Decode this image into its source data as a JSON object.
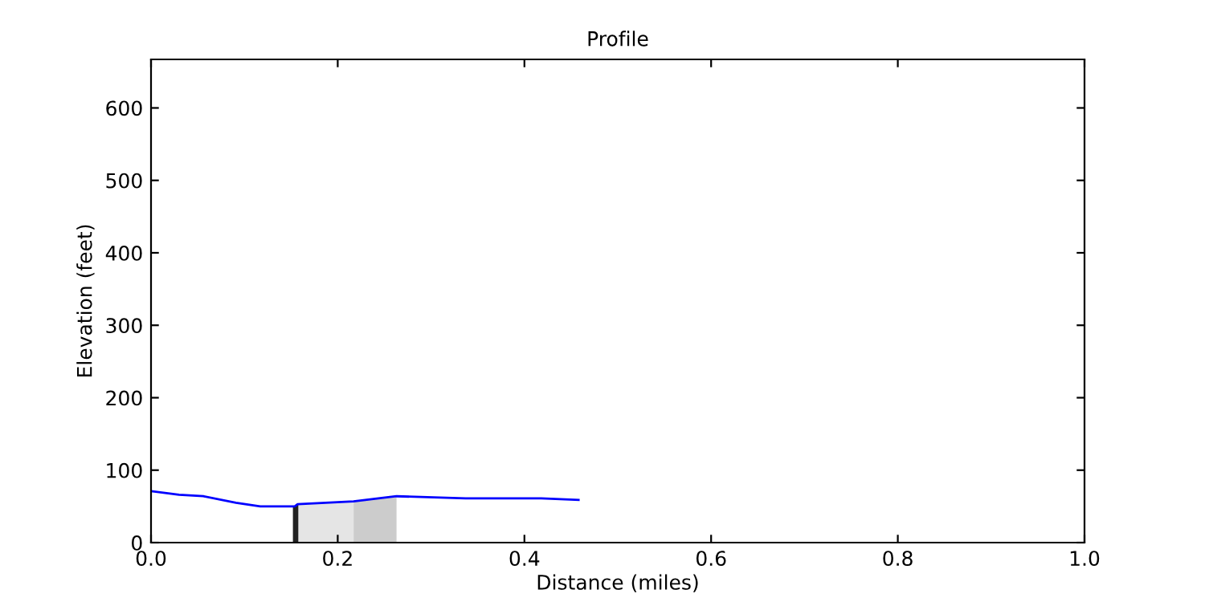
{
  "chart_data": {
    "type": "line",
    "title": "Profile",
    "xlabel": "Distance (miles)",
    "ylabel": "Elevation (feet)",
    "xlim": [
      0,
      1
    ],
    "xticks": [
      {
        "value": 0,
        "label": "0.0"
      },
      {
        "value": 0.2,
        "label": "0.2"
      },
      {
        "value": 0.4,
        "label": "0.4"
      },
      {
        "value": 0.6,
        "label": "0.6"
      },
      {
        "value": 0.8,
        "label": "0.8"
      },
      {
        "value": 1,
        "label": "1.0"
      }
    ],
    "ylim": [
      0,
      667
    ],
    "yticks": [
      0,
      100,
      200,
      300,
      400,
      500,
      600
    ],
    "grid": false,
    "legend": false,
    "series": [
      {
        "type": "area",
        "color": "#222222",
        "x": [
          0.152,
          0.158
        ],
        "values": [
          50,
          53
        ]
      },
      {
        "type": "area",
        "color": "#e5e5e5",
        "x": [
          0.158,
          0.217
        ],
        "values": [
          53,
          57
        ]
      },
      {
        "type": "area",
        "color": "#cccccc",
        "x": [
          0.217,
          0.263
        ],
        "values": [
          57,
          64
        ]
      },
      {
        "color": "#0000ff",
        "x": [
          0,
          0.03,
          0.056,
          0.091,
          0.117,
          0.154,
          0.157,
          0.217,
          0.263,
          0.337,
          0.418,
          0.458
        ],
        "values": [
          71,
          66,
          64,
          55,
          50,
          50,
          53,
          57,
          64,
          61,
          61,
          59
        ]
      }
    ]
  }
}
